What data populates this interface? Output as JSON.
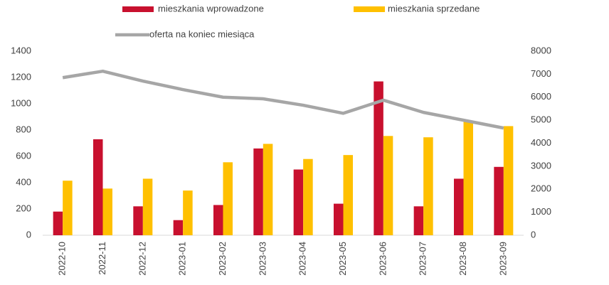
{
  "chart_data": {
    "type": "bar",
    "categories": [
      "2022-10",
      "2022-11",
      "2022-12",
      "2023-01",
      "2023-02",
      "2023-03",
      "2023-04",
      "2023-05",
      "2023-06",
      "2023-07",
      "2023-08",
      "2023-09"
    ],
    "series": [
      {
        "name": "mieszkania wprowadzone",
        "type": "bar",
        "color": "#c8102e",
        "values": [
          180,
          730,
          220,
          115,
          230,
          660,
          500,
          240,
          1170,
          220,
          430,
          520
        ]
      },
      {
        "name": "mieszkania sprzedane",
        "type": "bar",
        "color": "#ffc000",
        "values": [
          415,
          355,
          430,
          340,
          555,
          695,
          580,
          610,
          755,
          745,
          870,
          830
        ]
      },
      {
        "name": "oferta na koniec miesiąca",
        "type": "line",
        "axis": "y2",
        "color": "#a6a6a6",
        "values": [
          6850,
          7130,
          6700,
          6330,
          6000,
          5930,
          5650,
          5300,
          5870,
          5340,
          5000,
          4660
        ]
      }
    ],
    "ylim": [
      0,
      1400
    ],
    "yticks": [
      0,
      200,
      400,
      600,
      800,
      1000,
      1200,
      1400
    ],
    "y2lim": [
      0,
      8000
    ],
    "y2ticks": [
      0,
      1000,
      2000,
      3000,
      4000,
      5000,
      6000,
      7000,
      8000
    ],
    "legend": "top"
  }
}
